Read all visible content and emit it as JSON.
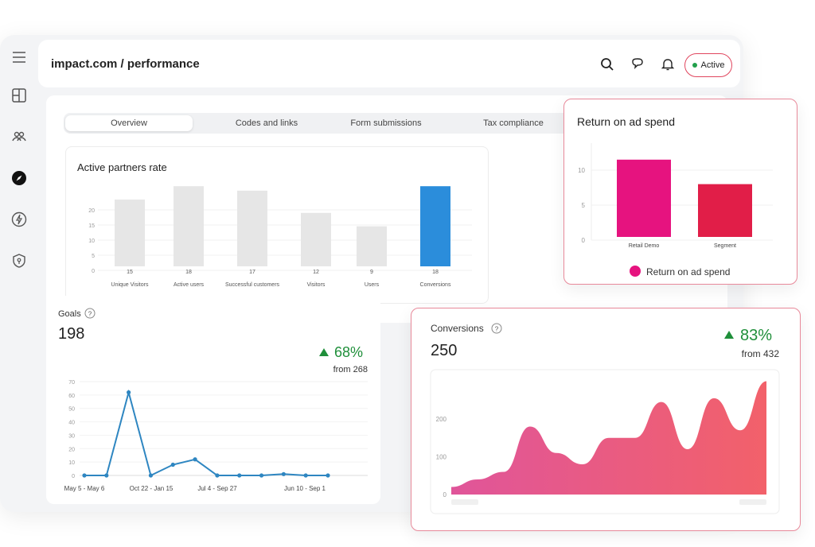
{
  "header": {
    "title": "impact.com / performance",
    "status_label": "Active"
  },
  "sidebar": {
    "items": [
      {
        "icon": "menu-icon"
      },
      {
        "icon": "dashboard-icon"
      },
      {
        "icon": "partners-icon"
      },
      {
        "icon": "compass-icon"
      },
      {
        "icon": "lightning-icon"
      },
      {
        "icon": "shield-icon"
      }
    ]
  },
  "tabs": [
    {
      "label": "Overview",
      "selected": true
    },
    {
      "label": "Codes and links",
      "selected": false
    },
    {
      "label": "Form submissions",
      "selected": false
    },
    {
      "label": "Tax compliance",
      "selected": false
    }
  ],
  "colors": {
    "accent": "#e0465e",
    "bar_gray": "#e6e6e6",
    "bar_blue": "#2b8ddb",
    "line_blue": "#2e86c1",
    "roas_pink": "#e6137f",
    "roas_red": "#e11e48",
    "positive": "#1f8f3a"
  },
  "active_partners": {
    "title": "Active partners rate",
    "chart_data": {
      "type": "bar",
      "categories": [
        "Unique Visitors",
        "Active users",
        "Successful customers",
        "Visitors",
        "Users",
        "Conversions"
      ],
      "values": [
        15,
        18,
        17,
        12,
        9,
        18
      ],
      "y_ticks": [
        "0",
        "5",
        "10",
        "15",
        "20"
      ],
      "ylim": [
        0,
        25
      ]
    }
  },
  "goals": {
    "title": "Goals",
    "value": "198",
    "change": "68%",
    "from": "from 268",
    "chart_data": {
      "type": "line",
      "x_labels": [
        "May 5 - May 6",
        "Oct 22 - Jan 15",
        "Jul 4 - Sep 27",
        "Jun 10 - Sep 1"
      ],
      "values": [
        0,
        0,
        62,
        0,
        8,
        12,
        0,
        0,
        0,
        1,
        0,
        0
      ],
      "y_ticks": [
        "0",
        "10",
        "20",
        "30",
        "40",
        "50",
        "60",
        "70"
      ],
      "ylim": [
        0,
        70
      ]
    }
  },
  "roas": {
    "title": "Return on ad spend",
    "legend": "Return on ad spend",
    "chart_data": {
      "type": "bar",
      "categories": [
        "Retail Demo",
        "Segment"
      ],
      "values": [
        11.5,
        8
      ],
      "y_ticks": [
        "0",
        "5",
        "10"
      ],
      "ylim": [
        0,
        15
      ]
    }
  },
  "conversions": {
    "title": "Conversions",
    "value": "250",
    "change": "83%",
    "from": "from 432",
    "chart_data": {
      "type": "area",
      "values": [
        20,
        40,
        60,
        180,
        110,
        80,
        150,
        150,
        245,
        120,
        255,
        170,
        300
      ],
      "y_ticks": [
        "0",
        "100",
        "200"
      ],
      "ylim": [
        0,
        320
      ]
    }
  }
}
